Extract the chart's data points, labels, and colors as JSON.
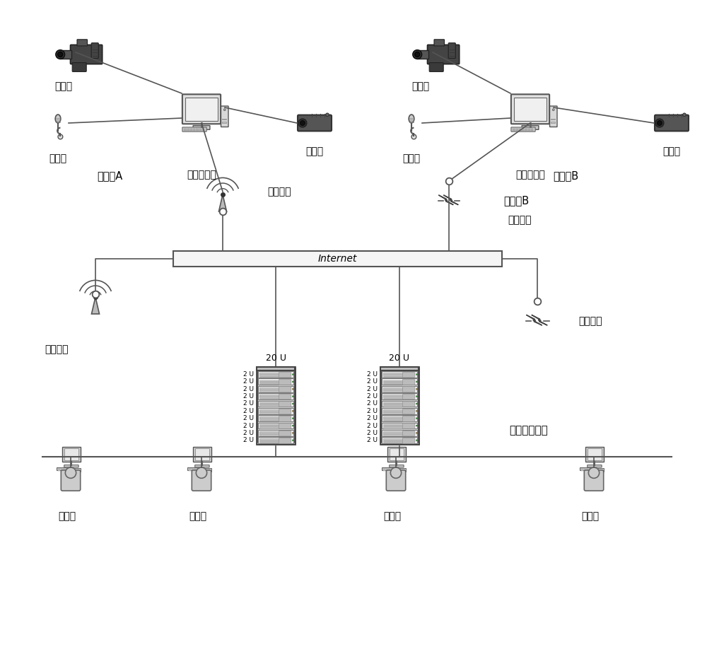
{
  "bg_color": "#ffffff",
  "text_color": "#000000",
  "line_color": "#555555",
  "labels": {
    "camera": "摄像机",
    "mic": "麦克风",
    "remote_client": "远程客户端",
    "projector": "投影仪",
    "training_a": "培训点A",
    "training_b": "培训点B",
    "mobile_network": "移动网络",
    "wired_network": "有线网络",
    "internet": "Internet",
    "central_rack": "中央集控机架",
    "operator": "操作员",
    "rack_20u": "20 U",
    "rack_2u": "2 U"
  },
  "layout": {
    "fig_w": 10.0,
    "fig_h": 9.49,
    "xlim": [
      0,
      10
    ],
    "ylim": [
      0,
      9.49
    ]
  }
}
